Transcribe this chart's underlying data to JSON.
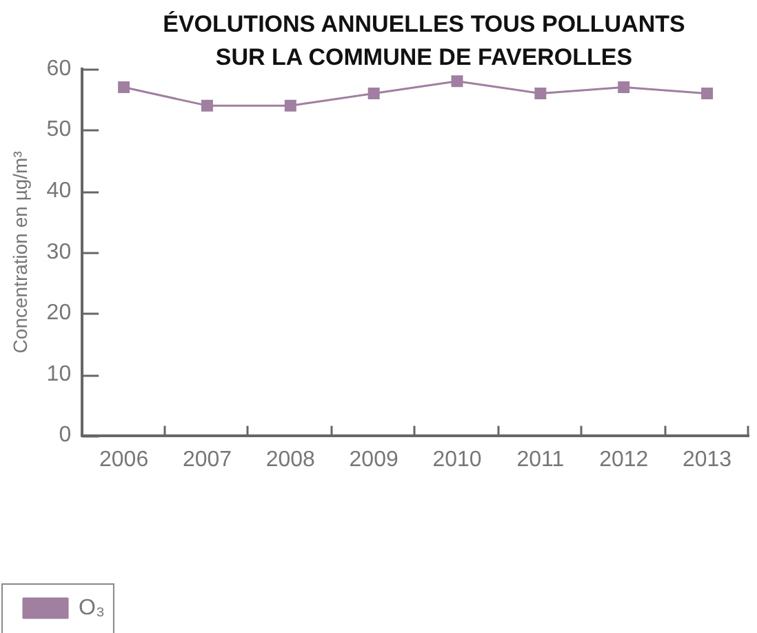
{
  "chart_data": {
    "type": "line",
    "title": "ÉVOLUTIONS ANNUELLES TOUS POLLUANTS SUR LA COMMUNE DE FAVEROLLES",
    "ylabel": "Concentration en µg/m³",
    "categories": [
      "2006",
      "2007",
      "2008",
      "2009",
      "2010",
      "2011",
      "2012",
      "2013"
    ],
    "series": [
      {
        "name": "O₃",
        "color": "#a07fa0",
        "values": [
          57,
          54,
          54,
          56,
          58,
          56,
          57,
          56
        ]
      }
    ],
    "ylim": [
      0,
      60
    ],
    "yticks": [
      0,
      10,
      20,
      30,
      40,
      50,
      60
    ],
    "grid": false,
    "legend": "bottom left",
    "marker": "square",
    "line_style": "solid"
  }
}
